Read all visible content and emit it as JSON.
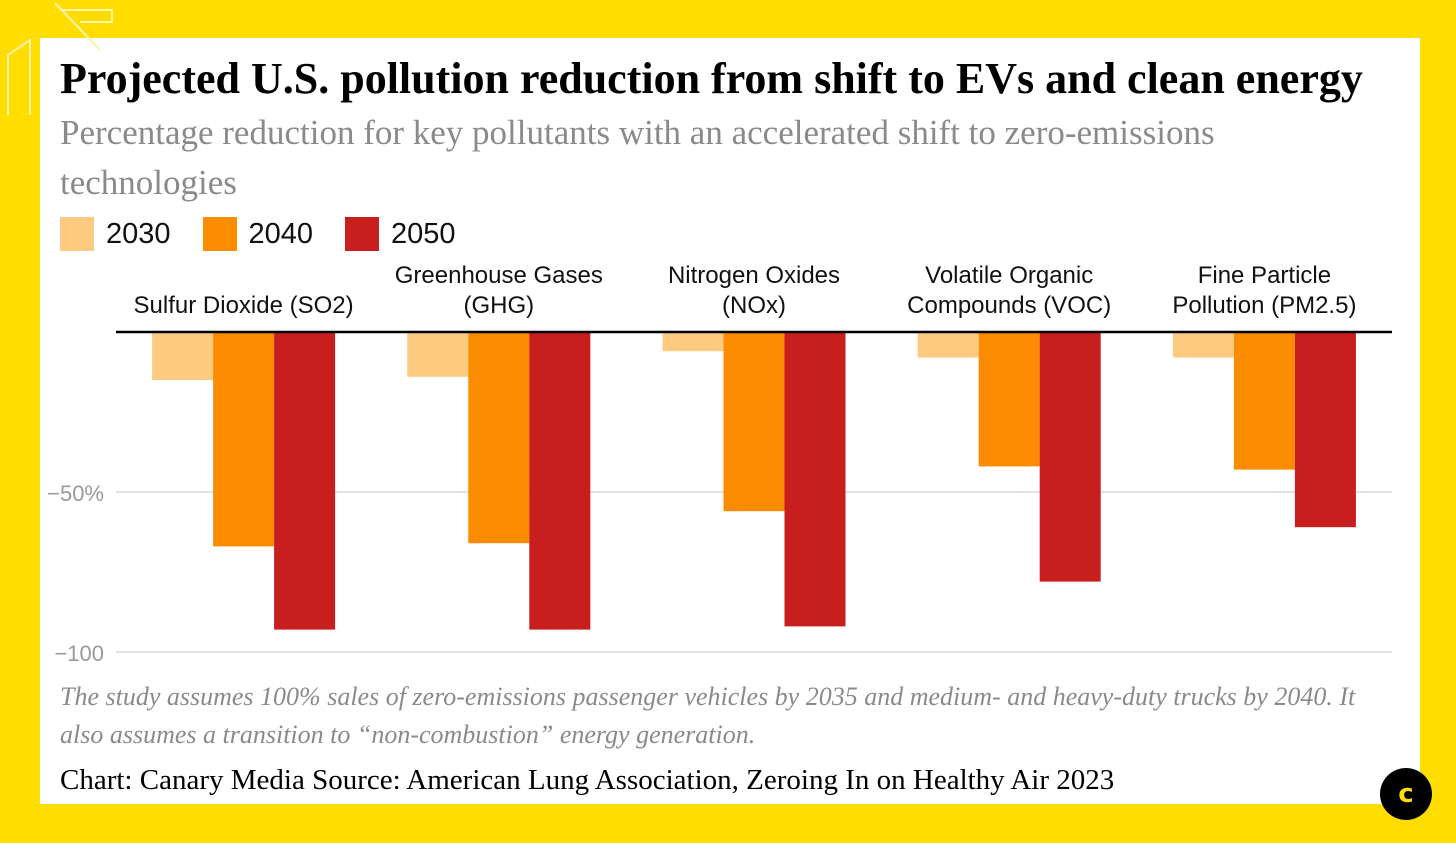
{
  "title": "Projected U.S. pollution reduction from shift to EVs and clean energy",
  "subtitle": "Percentage reduction for key pollutants with an accelerated shift to zero-emissions technologies",
  "note": "The study assumes 100% sales of zero-emissions passenger vehicles by 2035 and medium- and heavy-duty trucks by 2040. It also assumes a transition to “non-combustion” energy generation.",
  "credit": "Chart: Canary Media  Source: American Lung Association, Zeroing In on Healthy Air 2023",
  "logo_letter": "c",
  "colors": {
    "background": "#FFDD00",
    "s2030": "#FDCB80",
    "s2040": "#FB8C00",
    "s2050": "#C81E1E"
  },
  "chart_data": {
    "type": "bar",
    "orientation": "vertical-negative",
    "categories": [
      "Sulfur Dioxide (SO2)",
      "Greenhouse Gases (GHG)",
      "Nitrogen Oxides (NOx)",
      "Volatile Organic Compounds (VOC)",
      "Fine Particle Pollution (PM2.5)"
    ],
    "category_lines": [
      [
        "Sulfur Dioxide (SO2)"
      ],
      [
        "Greenhouse Gases",
        "(GHG)"
      ],
      [
        "Nitrogen Oxides",
        "(NOx)"
      ],
      [
        "Volatile Organic",
        "Compounds (VOC)"
      ],
      [
        "Fine Particle",
        "Pollution (PM2.5)"
      ]
    ],
    "series": [
      {
        "name": "2030",
        "color": "#FDCB80",
        "values": [
          -15,
          -14,
          -6,
          -8,
          -8
        ]
      },
      {
        "name": "2040",
        "color": "#FB8C00",
        "values": [
          -67,
          -66,
          -56,
          -42,
          -43
        ]
      },
      {
        "name": "2050",
        "color": "#C81E1E",
        "values": [
          -93,
          -93,
          -92,
          -78,
          -61
        ]
      }
    ],
    "ylim": [
      -100,
      0
    ],
    "yticks": [
      -50,
      -100
    ],
    "ytick_labels": [
      "−50%",
      "−100"
    ],
    "grid": true,
    "legend": "top-left"
  }
}
